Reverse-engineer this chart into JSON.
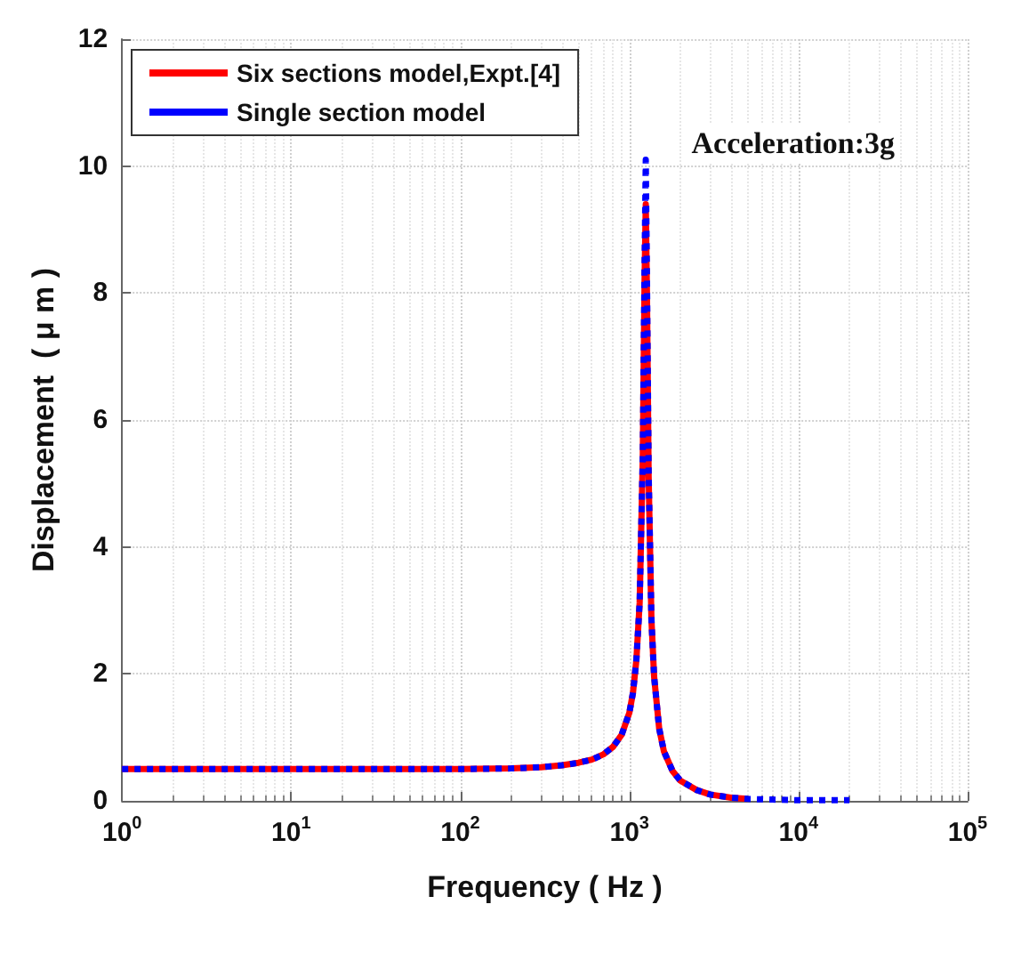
{
  "chart_data": {
    "type": "line",
    "xlabel": "Frequency ( Hz )",
    "ylabel": "Displacement  ( μ m )",
    "annotations": [
      "Acceleration:3g"
    ],
    "log": "x",
    "grid": true,
    "legend": "top left",
    "marker": "none",
    "xlim": [
      1,
      100000
    ],
    "xticks": [
      {
        "value": 1,
        "label": "10$^{0}$"
      },
      {
        "value": 10,
        "label": "10$^{1}$"
      },
      {
        "value": 100,
        "label": "10$^{2}$"
      },
      {
        "value": 1000,
        "label": "10$^{3}$"
      },
      {
        "value": 10000,
        "label": "10$^{4}$"
      },
      {
        "value": 100000,
        "label": "10$^{5}$"
      }
    ],
    "ylim": [
      0,
      12
    ],
    "yticks": [
      0,
      2,
      4,
      6,
      8,
      10,
      12
    ],
    "series": [
      {
        "name": "Six sections model,Expt.[4]",
        "color": "#ff0000",
        "line_style": "solid",
        "x": [
          1,
          2,
          5,
          10,
          20,
          50,
          100,
          200,
          300,
          400,
          500,
          600,
          700,
          800,
          900,
          1000,
          1050,
          1100,
          1150,
          1200,
          1230,
          1250,
          1270,
          1300,
          1350,
          1400,
          1500,
          1600,
          1800,
          2000,
          2500,
          3000,
          4000,
          5000
        ],
        "values": [
          0.5,
          0.5,
          0.5,
          0.5,
          0.5,
          0.5,
          0.5,
          0.51,
          0.53,
          0.56,
          0.6,
          0.65,
          0.73,
          0.85,
          1.04,
          1.39,
          1.7,
          2.22,
          3.12,
          5.4,
          8.2,
          9.4,
          8.0,
          5.1,
          2.86,
          1.96,
          1.14,
          0.78,
          0.47,
          0.32,
          0.17,
          0.1,
          0.05,
          0.03
        ]
      },
      {
        "name": "Single section model",
        "color": "#0000ff",
        "line_style": "dotted",
        "x": [
          1,
          2,
          5,
          10,
          20,
          50,
          100,
          200,
          300,
          400,
          500,
          600,
          700,
          800,
          900,
          1000,
          1050,
          1100,
          1150,
          1200,
          1230,
          1250,
          1270,
          1300,
          1350,
          1400,
          1500,
          1600,
          1800,
          2000,
          2500,
          3000,
          4000,
          5000,
          7000,
          10000,
          20000
        ],
        "values": [
          0.5,
          0.5,
          0.5,
          0.5,
          0.5,
          0.5,
          0.5,
          0.51,
          0.53,
          0.56,
          0.6,
          0.65,
          0.73,
          0.85,
          1.04,
          1.39,
          1.7,
          2.22,
          3.12,
          5.44,
          8.5,
          10.1,
          8.3,
          5.17,
          2.86,
          1.96,
          1.14,
          0.78,
          0.47,
          0.32,
          0.17,
          0.1,
          0.05,
          0.03,
          0.02,
          0.01,
          0.01
        ]
      }
    ]
  }
}
